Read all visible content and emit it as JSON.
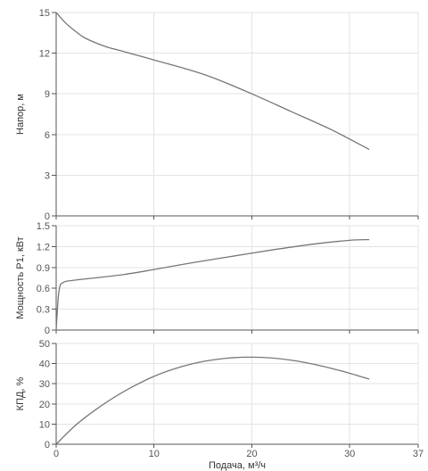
{
  "chart_data": [
    {
      "type": "line",
      "ylabel": "Напор, м",
      "xlim": [
        0,
        37
      ],
      "ylim": [
        0,
        15
      ],
      "yticks": [
        0,
        3,
        6,
        9,
        12,
        15
      ],
      "ytick_labels": [
        "0",
        "3",
        "6",
        "9",
        "12",
        "15"
      ],
      "grid": true,
      "series": [
        {
          "x": [
            0,
            1,
            2,
            3,
            5,
            7,
            10,
            13,
            16,
            20,
            24,
            28,
            32
          ],
          "y": [
            15,
            14.2,
            13.6,
            13.1,
            12.5,
            12.1,
            11.5,
            10.9,
            10.2,
            9.0,
            7.7,
            6.4,
            4.9
          ]
        }
      ]
    },
    {
      "type": "line",
      "ylabel": "Мощность Р1, кВт",
      "xlim": [
        0,
        37
      ],
      "ylim": [
        0,
        1.5
      ],
      "yticks": [
        0,
        0.3,
        0.6,
        0.9,
        1.2,
        1.5
      ],
      "ytick_labels": [
        "0",
        "0.3",
        "0.6",
        "0.9",
        "1.2",
        "1.5"
      ],
      "grid": true,
      "series": [
        {
          "x": [
            0,
            0.2,
            0.4,
            0.7,
            1,
            2,
            4,
            7,
            10,
            14,
            18,
            22,
            26,
            30,
            32
          ],
          "y": [
            0,
            0.45,
            0.64,
            0.68,
            0.7,
            0.72,
            0.75,
            0.8,
            0.87,
            0.97,
            1.06,
            1.15,
            1.23,
            1.29,
            1.3
          ]
        }
      ]
    },
    {
      "type": "line",
      "ylabel": "КПД, %",
      "xlabel": "Подача, м³/ч",
      "xlim": [
        0,
        37
      ],
      "ylim": [
        0,
        50
      ],
      "yticks": [
        0,
        10,
        20,
        30,
        40,
        50
      ],
      "ytick_labels": [
        "0",
        "10",
        "20",
        "30",
        "40",
        "50"
      ],
      "xticks": [
        0,
        10,
        20,
        30,
        37
      ],
      "xtick_labels": [
        "0",
        "10",
        "20",
        "30",
        "37"
      ],
      "grid": true,
      "series": [
        {
          "x": [
            0,
            2,
            4,
            6,
            8,
            10,
            12,
            14,
            16,
            18,
            20,
            22,
            24,
            26,
            28,
            30,
            32
          ],
          "y": [
            0,
            9.5,
            17,
            23.5,
            29,
            33.7,
            37.3,
            40,
            41.8,
            42.9,
            43.2,
            42.8,
            41.7,
            40,
            37.8,
            35.2,
            32.3
          ]
        }
      ]
    }
  ]
}
